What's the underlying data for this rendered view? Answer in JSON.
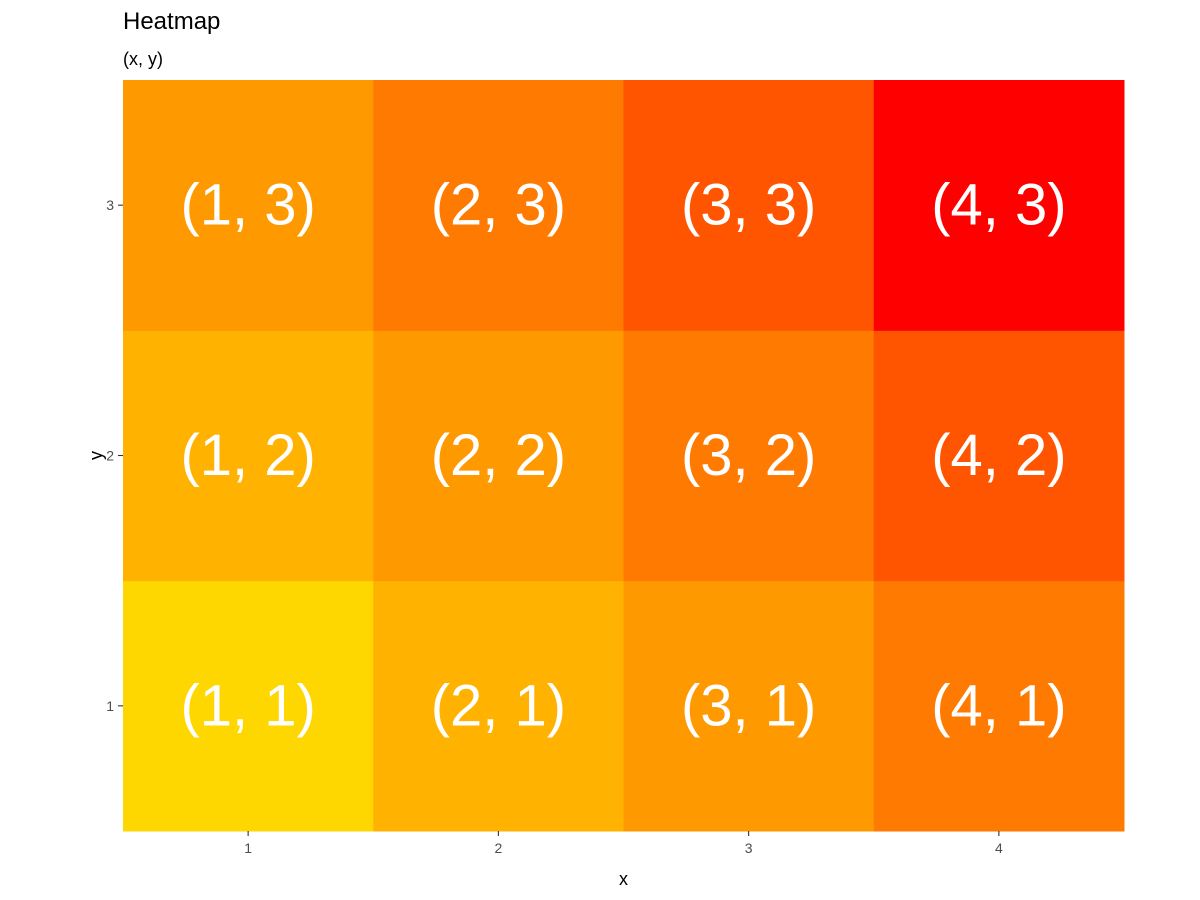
{
  "chart_data": {
    "type": "heatmap",
    "title": "Heatmap",
    "subtitle": "(x, y)",
    "xlabel": "x",
    "ylabel": "y",
    "x_categories": [
      "1",
      "2",
      "3",
      "4"
    ],
    "y_categories": [
      "1",
      "2",
      "3"
    ],
    "cells": [
      {
        "x": 1,
        "y": 1,
        "label": "(1, 1)",
        "color": "#FFD700"
      },
      {
        "x": 2,
        "y": 1,
        "label": "(2, 1)",
        "color": "#FFB300"
      },
      {
        "x": 3,
        "y": 1,
        "label": "(3, 1)",
        "color": "#FF9900"
      },
      {
        "x": 4,
        "y": 1,
        "label": "(4, 1)",
        "color": "#FF7A00"
      },
      {
        "x": 1,
        "y": 2,
        "label": "(1, 2)",
        "color": "#FFB300"
      },
      {
        "x": 2,
        "y": 2,
        "label": "(2, 2)",
        "color": "#FF9900"
      },
      {
        "x": 3,
        "y": 2,
        "label": "(3, 2)",
        "color": "#FF7A00"
      },
      {
        "x": 4,
        "y": 2,
        "label": "(4, 2)",
        "color": "#FF5500"
      },
      {
        "x": 1,
        "y": 3,
        "label": "(1, 3)",
        "color": "#FF9900"
      },
      {
        "x": 2,
        "y": 3,
        "label": "(2, 3)",
        "color": "#FF7A00"
      },
      {
        "x": 3,
        "y": 3,
        "label": "(3, 3)",
        "color": "#FF5500"
      },
      {
        "x": 4,
        "y": 3,
        "label": "(4, 3)",
        "color": "#FF0000"
      }
    ],
    "label_color": "#FFFFFF",
    "grid": false,
    "legend": "none"
  }
}
